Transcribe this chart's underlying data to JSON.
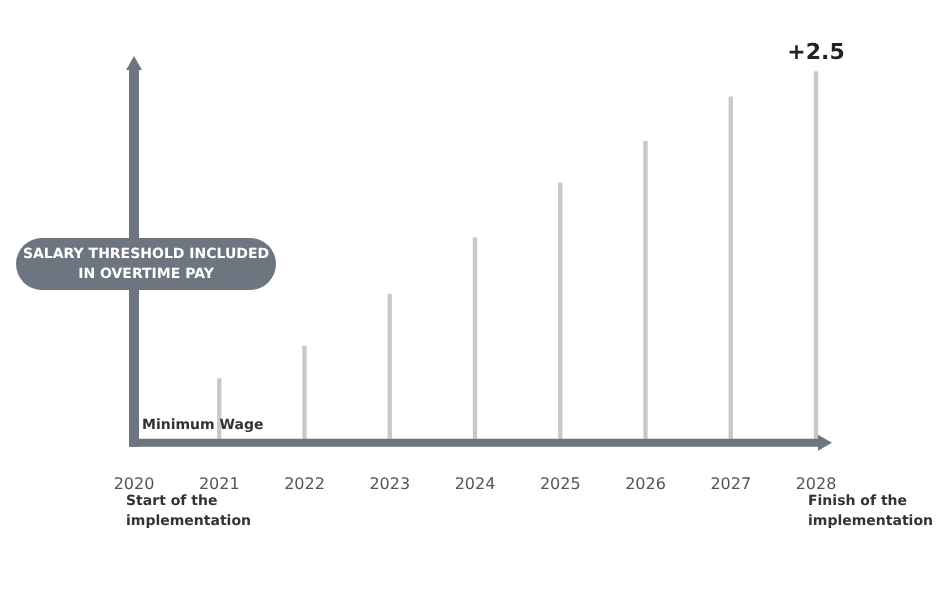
{
  "chart_data": {
    "type": "bar",
    "ylabel": "SALARY THRESHOLD INCLUDED IN OVERTIME PAY",
    "categories": [
      "2020",
      "2021",
      "2022",
      "2023",
      "2024",
      "2025",
      "2026",
      "2027",
      "2028"
    ],
    "values": [
      null,
      0.43,
      0.65,
      1.0,
      1.38,
      1.75,
      2.03,
      2.33,
      2.5
    ],
    "value_labels": [
      null,
      null,
      null,
      null,
      null,
      null,
      null,
      null,
      "+2.5"
    ],
    "color": "#c8c8c8",
    "ylim": [
      0,
      2.5
    ],
    "tick_labels": "x",
    "annotations": [
      "Minimum Wage",
      "Start of the implementation",
      "Finish of the implementation"
    ]
  }
}
